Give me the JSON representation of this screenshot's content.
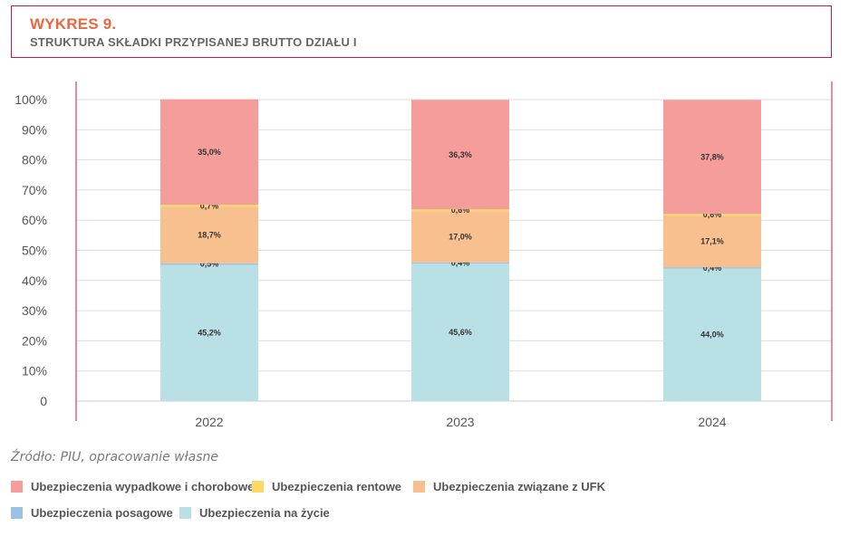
{
  "header": {
    "title": "WYKRES 9.",
    "subtitle": "STRUKTURA SKŁADKI PRZYPISANEJ BRUTTO DZIAŁU I"
  },
  "source": "Źródło: PIU, opracowanie własne",
  "colors": {
    "title": "#e8683f",
    "border": "#c2185b",
    "grid": "#dddddd"
  },
  "chart_data": {
    "type": "bar",
    "stacked": true,
    "categories": [
      "2022",
      "2023",
      "2024"
    ],
    "y_ticks": [
      "0",
      "10%",
      "20%",
      "30%",
      "40%",
      "50%",
      "60%",
      "70%",
      "80%",
      "90%",
      "100%"
    ],
    "ylim": [
      0,
      100
    ],
    "grid": true,
    "legend_position": "bottom-left",
    "series": [
      {
        "name": "Ubezpieczenia na życie",
        "color": "#b9e0e4",
        "values": [
          45.2,
          45.6,
          44.0
        ],
        "labels": [
          "45,2%",
          "45,6%",
          "44,0%"
        ]
      },
      {
        "name": "Ubezpieczenia posagowe",
        "color": "#9bc2e6",
        "values": [
          0.5,
          0.4,
          0.4
        ],
        "labels": [
          "0,5%",
          "0,4%",
          "0,4%"
        ]
      },
      {
        "name": "Ubezpieczenia związane z UFK",
        "color": "#f9c08f",
        "values": [
          18.7,
          17.0,
          17.1
        ],
        "labels": [
          "18,7%",
          "17,0%",
          "17,1%"
        ]
      },
      {
        "name": "Ubezpieczenia rentowe",
        "color": "#fdd964",
        "values": [
          0.7,
          0.6,
          0.6
        ],
        "labels": [
          "0,7%",
          "0,6%",
          "0,6%"
        ]
      },
      {
        "name": "Ubezpieczenia wypadkowe i chorobowe",
        "color": "#f59d9a",
        "values": [
          35.0,
          36.3,
          37.8
        ],
        "labels": [
          "35,0%",
          "36,3%",
          "37,8%"
        ]
      }
    ]
  },
  "legend": [
    {
      "label": "Ubezpieczenia wypadkowe i chorobowe",
      "color": "#f59d9a"
    },
    {
      "label": "Ubezpieczenia rentowe",
      "color": "#fdd964"
    },
    {
      "label": "Ubezpieczenia związane z UFK",
      "color": "#f9c08f"
    },
    {
      "label": "Ubezpieczenia posagowe",
      "color": "#9bc2e6"
    },
    {
      "label": "Ubezpieczenia na życie",
      "color": "#b9e0e4"
    }
  ]
}
